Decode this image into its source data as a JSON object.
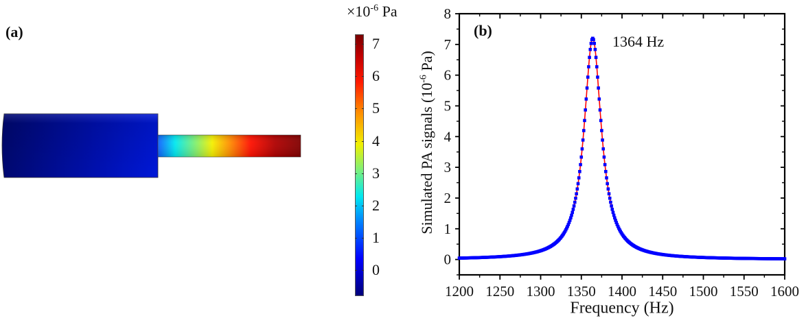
{
  "panel_a": {
    "label": "(a)",
    "colorbar": {
      "unit_prefix": "×10",
      "unit_exponent": "-6",
      "unit_suffix": " Pa",
      "ticks": [
        "7",
        "6",
        "5",
        "4",
        "3",
        "2",
        "1",
        "0"
      ],
      "tick_values": [
        7,
        6,
        5,
        4,
        3,
        2,
        1,
        0
      ],
      "range": [
        -0.8,
        7.3
      ],
      "colormap": "rainbow (dark blue → cyan → yellow → red → dark red)"
    },
    "geometry": {
      "description": "Large cylinder (buffer) attached to narrow resonator tube",
      "cylinder_color": "#0a14b4",
      "tube_gradient": [
        "#1a6fff",
        "#00e6f0",
        "#7cf07c",
        "#f0f000",
        "#ff9a00",
        "#ff1a00",
        "#c80000",
        "#800000"
      ]
    }
  },
  "chart_data": {
    "type": "scatter",
    "panel_label": "(b)",
    "title": "",
    "xlabel": "Frequency (Hz)",
    "ylabel_main": "Simulated PA signals (10",
    "ylabel_exponent": "-6",
    "ylabel_tail": " Pa)",
    "xlim": [
      1200,
      1600
    ],
    "ylim": [
      -0.5,
      8
    ],
    "xticks": [
      1200,
      1250,
      1300,
      1350,
      1400,
      1450,
      1500,
      1550,
      1600
    ],
    "yticks": [
      0,
      1,
      2,
      3,
      4,
      5,
      6,
      7,
      8
    ],
    "grid": false,
    "annotation": "1364 Hz",
    "series": [
      {
        "name": "Simulated PA signal",
        "marker": "square",
        "color": "#0000ff",
        "model": "lorentzian",
        "center_hz": 1364,
        "peak_value": 7.2,
        "half_width_hz": 13,
        "step_hz": 1,
        "sample_points": [
          {
            "x": 1200,
            "y": 0.04
          },
          {
            "x": 1250,
            "y": 0.09
          },
          {
            "x": 1300,
            "y": 0.29
          },
          {
            "x": 1340,
            "y": 1.7
          },
          {
            "x": 1350,
            "y": 3.4
          },
          {
            "x": 1364,
            "y": 7.2
          },
          {
            "x": 1380,
            "y": 2.8
          },
          {
            "x": 1400,
            "y": 0.83
          },
          {
            "x": 1450,
            "y": 0.16
          },
          {
            "x": 1500,
            "y": 0.07
          },
          {
            "x": 1550,
            "y": 0.04
          },
          {
            "x": 1600,
            "y": 0.02
          }
        ]
      },
      {
        "name": "Lorentzian fit",
        "style": "line",
        "color": "#ff0000",
        "center_hz": 1364,
        "peak_value": 7.2,
        "half_width_hz": 13
      }
    ]
  }
}
